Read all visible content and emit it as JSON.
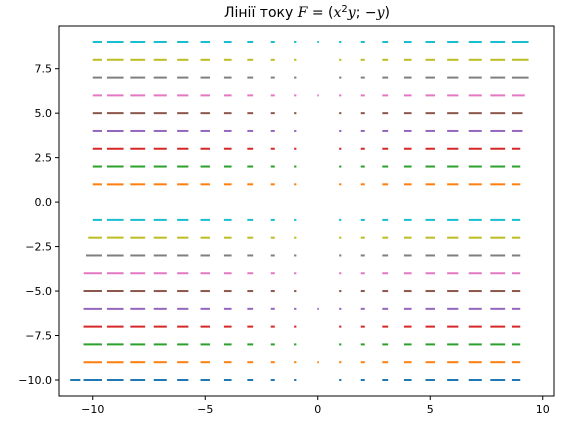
{
  "chart_data": {
    "type": "line",
    "title": {
      "prefix": "Лінії току ",
      "F": "F",
      "eq": " = (",
      "x": "x",
      "sup": "2",
      "y1": "y",
      "mid": "; −",
      "y2": "y",
      "close": ")"
    },
    "xlabel": "",
    "ylabel": "",
    "xlim": [
      -11.5,
      10.5
    ],
    "ylim": [
      -10.9,
      9.9
    ],
    "xticks": [
      -10,
      -5,
      0,
      5,
      10
    ],
    "yticks": [
      -10.0,
      -7.5,
      -5.0,
      -2.5,
      0.0,
      2.5,
      5.0,
      7.5
    ],
    "xtick_labels": [
      "−10",
      "−5",
      "0",
      "5",
      "10"
    ],
    "ytick_labels": [
      "−10.0",
      "−7.5",
      "−5.0",
      "−2.5",
      "0.0",
      "2.5",
      "5.0",
      "7.5"
    ],
    "grid": false,
    "legend": false,
    "description": "Each series is a horizontal streamline at constant y; short dashes spaced at unit x-intervals, longer with larger |x|.",
    "series": [
      {
        "y": 9,
        "color": "#17becf",
        "x_range": [
          -10,
          9.7
        ]
      },
      {
        "y": 8,
        "color": "#bcbd22",
        "x_range": [
          -10,
          9.7
        ]
      },
      {
        "y": 7,
        "color": "#7f7f7f",
        "x_range": [
          -10,
          9.4
        ]
      },
      {
        "y": 6,
        "color": "#e377c2",
        "x_range": [
          -10,
          9.2
        ]
      },
      {
        "y": 5,
        "color": "#8c564b",
        "x_range": [
          -10,
          9.1
        ]
      },
      {
        "y": 4,
        "color": "#9467bd",
        "x_range": [
          -10,
          9.1
        ]
      },
      {
        "y": 3,
        "color": "#d62728",
        "x_range": [
          -10,
          9.0
        ]
      },
      {
        "y": 2,
        "color": "#2ca02c",
        "x_range": [
          -10,
          9.0
        ]
      },
      {
        "y": 1,
        "color": "#ff7f0e",
        "x_range": [
          -10,
          9.0
        ]
      },
      {
        "y": -1,
        "color": "#17becf",
        "x_range": [
          -10,
          9.0
        ]
      },
      {
        "y": -2,
        "color": "#bcbd22",
        "x_range": [
          -10.2,
          9.0
        ]
      },
      {
        "y": -3,
        "color": "#7f7f7f",
        "x_range": [
          -10.3,
          9.0
        ]
      },
      {
        "y": -4,
        "color": "#e377c2",
        "x_range": [
          -10.4,
          9.0
        ]
      },
      {
        "y": -5,
        "color": "#8c564b",
        "x_range": [
          -10.5,
          9.0
        ]
      },
      {
        "y": -6,
        "color": "#9467bd",
        "x_range": [
          -10.6,
          9.0
        ]
      },
      {
        "y": -7,
        "color": "#d62728",
        "x_range": [
          -10.7,
          9.0
        ]
      },
      {
        "y": -8,
        "color": "#2ca02c",
        "x_range": [
          -10.8,
          9.0
        ]
      },
      {
        "y": -9,
        "color": "#ff7f0e",
        "x_range": [
          -10.9,
          9.0
        ]
      },
      {
        "y": -10,
        "color": "#1f77b4",
        "x_range": [
          -11.0,
          9.0
        ]
      }
    ]
  }
}
